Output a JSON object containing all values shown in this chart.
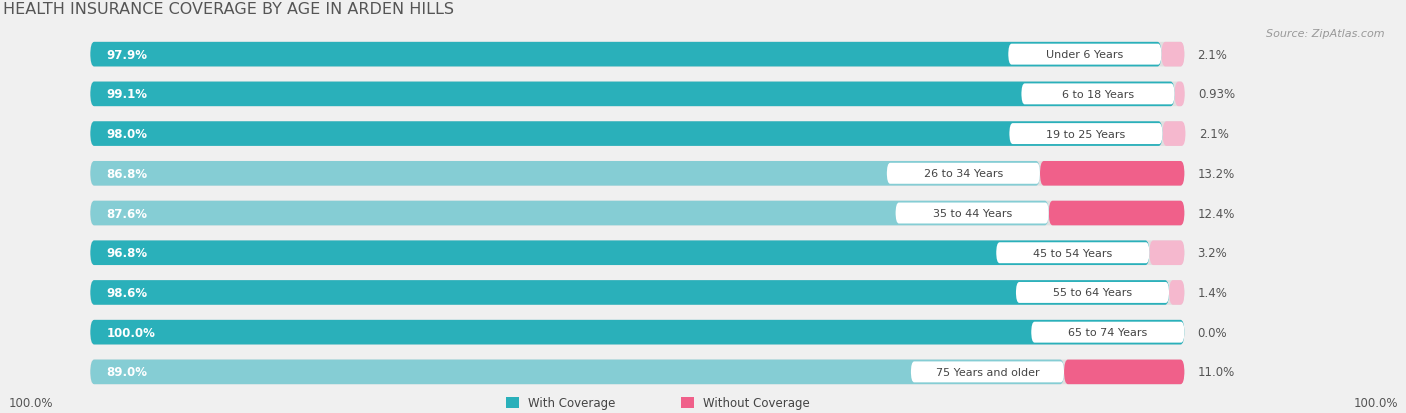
{
  "title": "HEALTH INSURANCE COVERAGE BY AGE IN ARDEN HILLS",
  "source": "Source: ZipAtlas.com",
  "categories": [
    "Under 6 Years",
    "6 to 18 Years",
    "19 to 25 Years",
    "26 to 34 Years",
    "35 to 44 Years",
    "45 to 54 Years",
    "55 to 64 Years",
    "65 to 74 Years",
    "75 Years and older"
  ],
  "with_coverage": [
    97.9,
    99.1,
    98.0,
    86.8,
    87.6,
    96.8,
    98.6,
    100.0,
    89.0
  ],
  "without_coverage": [
    2.1,
    0.93,
    2.1,
    13.2,
    12.4,
    3.2,
    1.4,
    0.0,
    11.0
  ],
  "with_coverage_labels": [
    "97.9%",
    "99.1%",
    "98.0%",
    "86.8%",
    "87.6%",
    "96.8%",
    "98.6%",
    "100.0%",
    "89.0%"
  ],
  "without_coverage_labels": [
    "2.1%",
    "0.93%",
    "2.1%",
    "13.2%",
    "12.4%",
    "3.2%",
    "1.4%",
    "0.0%",
    "11.0%"
  ],
  "color_with_high": "#2ab0ba",
  "color_with_low": "#85cdd4",
  "color_without_high": "#f0608a",
  "color_without_low": "#f5b8ce",
  "background_color": "#f0f0f0",
  "bar_bg_color": "#e0e0e0",
  "title_color": "#555555",
  "legend_with_color": "#2ab0ba",
  "legend_without_color": "#f0608a"
}
